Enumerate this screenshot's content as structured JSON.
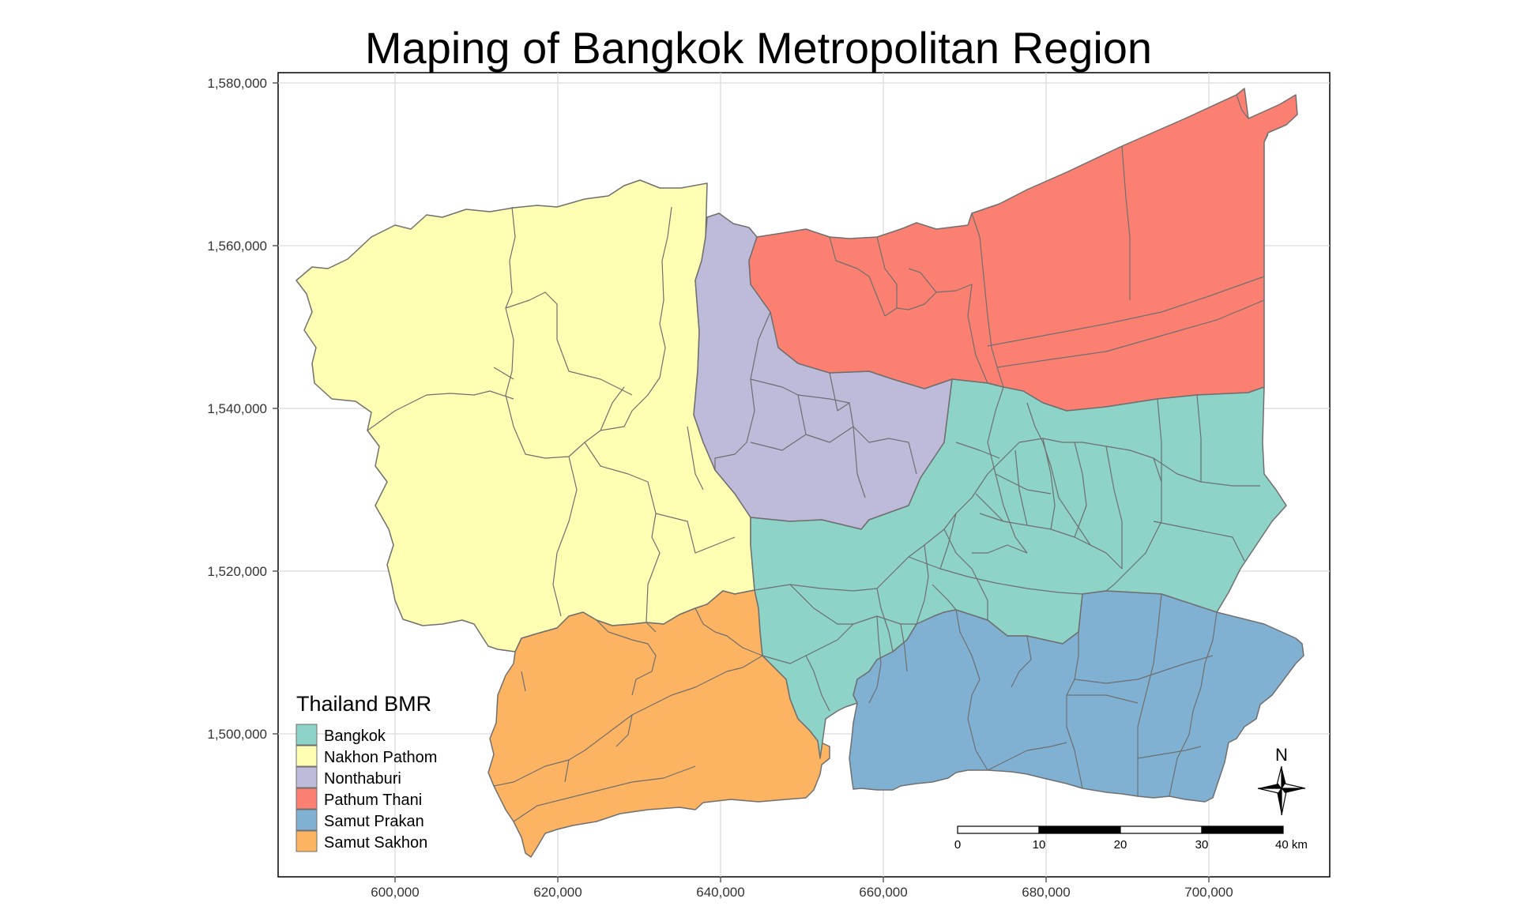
{
  "map": {
    "title": "Maping of Bangkok Metropolitan Region",
    "x_ticks": [
      "600,000",
      "620,000",
      "640,000",
      "660,000",
      "680,000",
      "700,000"
    ],
    "y_ticks": [
      "1,580,000",
      "1,560,000",
      "1,540,000",
      "1,520,000",
      "1,500,000"
    ]
  },
  "legend": {
    "title": "Thailand BMR",
    "items": [
      {
        "label": "Bangkok",
        "color": "#8DD3C7"
      },
      {
        "label": "Nakhon Pathom",
        "color": "#FFFFB3"
      },
      {
        "label": "Nonthaburi",
        "color": "#BEBADA"
      },
      {
        "label": "Pathum Thani",
        "color": "#FB8072"
      },
      {
        "label": "Samut Prakan",
        "color": "#80B1D3"
      },
      {
        "label": "Samut Sakhon",
        "color": "#FDB462"
      }
    ]
  },
  "north_arrow": {
    "label": "N"
  },
  "scale_bar": {
    "labels": [
      "0",
      "10",
      "20",
      "30",
      "40 km"
    ]
  }
}
